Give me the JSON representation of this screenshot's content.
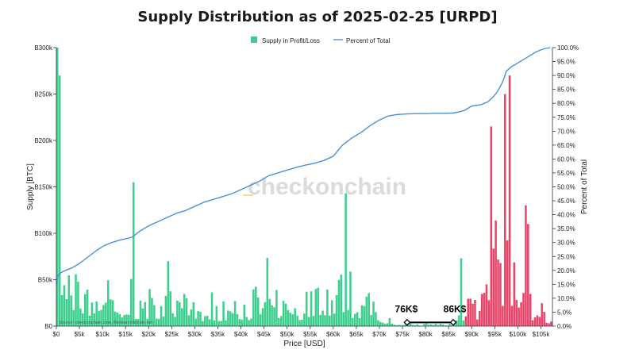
{
  "chart_data": {
    "type": "bar",
    "title": "Supply Distribution as of 2025-02-25 [URPD]",
    "xlabel": "Price [USD]",
    "ylabel": "Supply [BTC]",
    "y2label": "Percent of Total",
    "xlim": [
      0,
      107500
    ],
    "ylim": [
      0,
      300000
    ],
    "y2lim": [
      0,
      100
    ],
    "x_ticks": [
      {
        "value": 0,
        "label": "$0"
      },
      {
        "value": 5000,
        "label": "$5k"
      },
      {
        "value": 10000,
        "label": "$10k"
      },
      {
        "value": 15000,
        "label": "$15k"
      },
      {
        "value": 20000,
        "label": "$20k"
      },
      {
        "value": 25000,
        "label": "$25k"
      },
      {
        "value": 30000,
        "label": "$30k"
      },
      {
        "value": 35000,
        "label": "$35k"
      },
      {
        "value": 40000,
        "label": "$40k"
      },
      {
        "value": 45000,
        "label": "$45k"
      },
      {
        "value": 50000,
        "label": "$50k"
      },
      {
        "value": 55000,
        "label": "$55k"
      },
      {
        "value": 60000,
        "label": "$60k"
      },
      {
        "value": 65000,
        "label": "$65k"
      },
      {
        "value": 70000,
        "label": "$70k"
      },
      {
        "value": 75000,
        "label": "$75k"
      },
      {
        "value": 80000,
        "label": "$80k"
      },
      {
        "value": 85000,
        "label": "$85k"
      },
      {
        "value": 90000,
        "label": "$90k"
      },
      {
        "value": 95000,
        "label": "$95k"
      },
      {
        "value": 100000,
        "label": "$100k"
      },
      {
        "value": 105000,
        "label": "$105k"
      }
    ],
    "y_ticks": [
      {
        "value": 0,
        "label": "B0"
      },
      {
        "value": 50000,
        "label": "B50k"
      },
      {
        "value": 100000,
        "label": "B100k"
      },
      {
        "value": 150000,
        "label": "B150k"
      },
      {
        "value": 200000,
        "label": "B200k"
      },
      {
        "value": 250000,
        "label": "B250k"
      },
      {
        "value": 300000,
        "label": "B300k"
      }
    ],
    "y2_ticks": [
      "0.0%",
      "5.0%",
      "10.0%",
      "15.0%",
      "20.0%",
      "25.0%",
      "30.0%",
      "35.0%",
      "40.0%",
      "45.0%",
      "50.0%",
      "55.0%",
      "60.0%",
      "65.0%",
      "70.0%",
      "75.0%",
      "80.0%",
      "85.0%",
      "90.0%",
      "95.0%",
      "100.0%"
    ],
    "legend": {
      "placement": "top-center",
      "items": [
        "Supply in Profit/Loss",
        "Percent of Total"
      ]
    },
    "grid": false,
    "colors": {
      "profit": "#3ecf8e",
      "loss": "#e8456a",
      "cumulative": "#4a90d9",
      "annotation": "#000000"
    },
    "profit_loss_split": 88500,
    "highlighted_peaks_btc": [
      {
        "x": 0,
        "value": 300000
      },
      {
        "x": 500,
        "value": 270000
      },
      {
        "x": 16500,
        "value": 155000
      },
      {
        "x": 62500,
        "value": 143000
      },
      {
        "x": 87500,
        "value": 73000
      },
      {
        "x": 94000,
        "value": 215000
      },
      {
        "x": 97000,
        "value": 250000
      },
      {
        "x": 98000,
        "value": 270000
      },
      {
        "x": 101500,
        "value": 130000
      },
      {
        "x": 102000,
        "value": 110000
      }
    ],
    "cumulative_percent": {
      "x": [
        0,
        250,
        500,
        1000,
        2000,
        3500,
        5000,
        7000,
        9000,
        10500,
        12000,
        14000,
        15500,
        16500,
        18000,
        20000,
        22000,
        24000,
        26000,
        28000,
        30000,
        32000,
        34000,
        36000,
        38000,
        40000,
        42000,
        44000,
        46000,
        48000,
        50000,
        52000,
        54000,
        56000,
        58000,
        60000,
        61000,
        62000,
        64000,
        66000,
        68000,
        70000,
        72000,
        74000,
        76000,
        78000,
        80000,
        82000,
        84000,
        86000,
        87500,
        88500,
        90000,
        92000,
        93500,
        94500,
        95500,
        96500,
        97000,
        97500,
        98500,
        100000,
        101500,
        102500,
        104000,
        105500,
        107000
      ],
      "y": [
        15,
        17,
        18.5,
        19.2,
        20,
        21,
        22.5,
        25,
        27.5,
        29,
        30,
        31,
        31.5,
        32,
        34,
        36,
        37.5,
        39,
        40.5,
        41.5,
        43,
        44.5,
        45.5,
        46.5,
        47.5,
        49,
        50.5,
        52,
        54,
        55,
        56,
        57,
        57.8,
        58.5,
        59.5,
        61,
        63,
        65,
        67.5,
        69.5,
        72,
        74,
        75.5,
        76,
        76.2,
        76.3,
        76.3,
        76.4,
        76.4,
        76.5,
        77,
        77.5,
        79,
        79.5,
        80.5,
        82,
        84,
        87,
        89,
        91.5,
        93,
        94.5,
        96,
        97,
        98.5,
        99.5,
        100
      ]
    },
    "annotations": [
      {
        "label": "76K$",
        "x": 76000,
        "y": 4000
      },
      {
        "label": "86K$",
        "x": 86000,
        "y": 4000
      }
    ],
    "watermark": "checkonchain",
    "source": "Source: checkonchain.com, ResearchBitcoin.net"
  }
}
